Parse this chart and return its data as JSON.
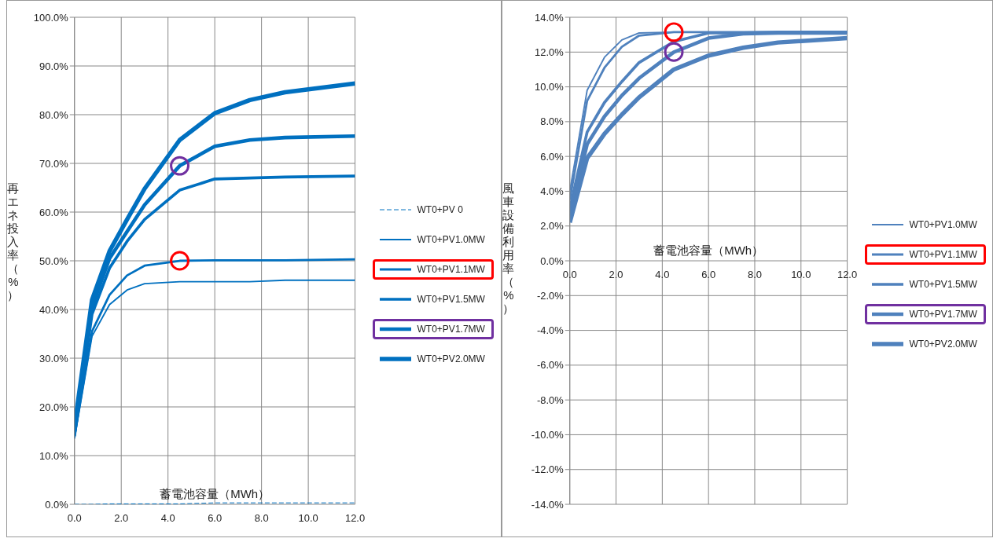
{
  "chart_data": [
    {
      "type": "line",
      "xlabel": "蓄電池容量（MWh）",
      "ylabel": "再エネ投入率（%）",
      "x": [
        0,
        0.75,
        1.5,
        2.25,
        3,
        4.5,
        6,
        7.5,
        9,
        12
      ],
      "xlim": [
        0,
        12
      ],
      "xticks": [
        {
          "value": 0,
          "label": "0.0"
        },
        {
          "value": 2,
          "label": "2.0"
        },
        {
          "value": 4,
          "label": "4.0"
        },
        {
          "value": 6,
          "label": "6.0"
        },
        {
          "value": 8,
          "label": "8.0"
        },
        {
          "value": 10,
          "label": "10.0"
        },
        {
          "value": 12,
          "label": "12.0"
        }
      ],
      "ylim": [
        0,
        100
      ],
      "yticks": [
        {
          "value": 0,
          "label": "0.0%"
        },
        {
          "value": 10,
          "label": "10.0%"
        },
        {
          "value": 20,
          "label": "20.0%"
        },
        {
          "value": 30,
          "label": "30.0%"
        },
        {
          "value": 40,
          "label": "40.0%"
        },
        {
          "value": 50,
          "label": "50.0%"
        },
        {
          "value": 60,
          "label": "60.0%"
        },
        {
          "value": 70,
          "label": "70.0%"
        },
        {
          "value": 80,
          "label": "80.0%"
        },
        {
          "value": 90,
          "label": "90.0%"
        },
        {
          "value": 100,
          "label": "100.0%"
        }
      ],
      "grid": true,
      "legend": "right",
      "marker": "none",
      "series": [
        {
          "name": "WT0+PV 0",
          "color": "#0070c0",
          "line_style": "dashed",
          "values": [
            0,
            0,
            0.1,
            0.1,
            0.1,
            0.1,
            0.3,
            0.3,
            0.3,
            0.3
          ]
        },
        {
          "name": "WT0+PV1.0MW",
          "color": "#0070c0",
          "values": [
            13.5,
            34.5,
            41,
            44,
            45.3,
            45.7,
            45.7,
            45.7,
            46,
            46
          ]
        },
        {
          "name": "WT0+PV1.1MW",
          "color": "#0070c0",
          "values": [
            14,
            35.5,
            43,
            47,
            49,
            50,
            50.1,
            50.1,
            50.1,
            50.3
          ]
        },
        {
          "name": "WT0+PV1.5MW",
          "color": "#0070c0",
          "values": [
            14,
            39,
            48.5,
            54,
            58.5,
            64.5,
            66.8,
            67,
            67.2,
            67.4
          ]
        },
        {
          "name": "WT0+PV1.7MW",
          "color": "#0070c0",
          "values": [
            15,
            40.5,
            50.5,
            56,
            61.5,
            69.5,
            73.5,
            74.8,
            75.3,
            75.6
          ]
        },
        {
          "name": "WT0+PV2.0MW",
          "color": "#0070c0",
          "values": [
            16,
            42,
            52,
            58.5,
            64.8,
            74.8,
            80.3,
            83,
            84.6,
            86.4
          ]
        }
      ]
    },
    {
      "type": "line",
      "xlabel": "蓄電池容量（MWh）",
      "ylabel": "風車設備利用率（%）",
      "x": [
        0,
        0.75,
        1.5,
        2.25,
        3,
        4.5,
        6,
        7.5,
        9,
        12
      ],
      "xlim": [
        0,
        12
      ],
      "xticks": [
        {
          "value": 0,
          "label": "0.0"
        },
        {
          "value": 2,
          "label": "2.0"
        },
        {
          "value": 4,
          "label": "4.0"
        },
        {
          "value": 6,
          "label": "6.0"
        },
        {
          "value": 8,
          "label": "8.0"
        },
        {
          "value": 10,
          "label": "10.0"
        },
        {
          "value": 12,
          "label": "12.0"
        }
      ],
      "ylim": [
        -14,
        14
      ],
      "yticks": [
        {
          "value": -14,
          "label": "-14.0%"
        },
        {
          "value": -12,
          "label": "-12.0%"
        },
        {
          "value": -10,
          "label": "-10.0%"
        },
        {
          "value": -8,
          "label": "-8.0%"
        },
        {
          "value": -6,
          "label": "-6.0%"
        },
        {
          "value": -4,
          "label": "-4.0%"
        },
        {
          "value": -2,
          "label": "-2.0%"
        },
        {
          "value": 0,
          "label": "0.0%"
        },
        {
          "value": 2,
          "label": "2.0%"
        },
        {
          "value": 4,
          "label": "4.0%"
        },
        {
          "value": 6,
          "label": "6.0%"
        },
        {
          "value": 8,
          "label": "8.0%"
        },
        {
          "value": 10,
          "label": "10.0%"
        },
        {
          "value": 12,
          "label": "12.0%"
        },
        {
          "value": 14,
          "label": "14.0%"
        }
      ],
      "grid": true,
      "legend": "right",
      "marker": "none",
      "series": [
        {
          "name": "WT0+PV1.0MW",
          "color": "#4f81bd",
          "values": [
            4.0,
            9.8,
            11.7,
            12.7,
            13.1,
            13.15,
            13.15,
            13.15,
            13.15,
            13.15
          ]
        },
        {
          "name": "WT0+PV1.1MW",
          "color": "#4f81bd",
          "values": [
            3.5,
            9.2,
            11.1,
            12.3,
            12.95,
            13.15,
            13.15,
            13.15,
            13.15,
            13.15
          ]
        },
        {
          "name": "WT0+PV1.5MW",
          "color": "#4f81bd",
          "values": [
            3.0,
            7.4,
            9.1,
            10.3,
            11.4,
            12.6,
            13.1,
            13.1,
            13.15,
            13.15
          ]
        },
        {
          "name": "WT0+PV1.7MW",
          "color": "#4f81bd",
          "values": [
            2.6,
            6.7,
            8.3,
            9.5,
            10.5,
            12.0,
            12.8,
            13.05,
            13.1,
            13.1
          ]
        },
        {
          "name": "WT0+PV2.0MW",
          "color": "#4f81bd",
          "values": [
            2.2,
            5.9,
            7.3,
            8.4,
            9.4,
            11.0,
            11.8,
            12.25,
            12.55,
            12.8
          ]
        }
      ]
    }
  ]
}
